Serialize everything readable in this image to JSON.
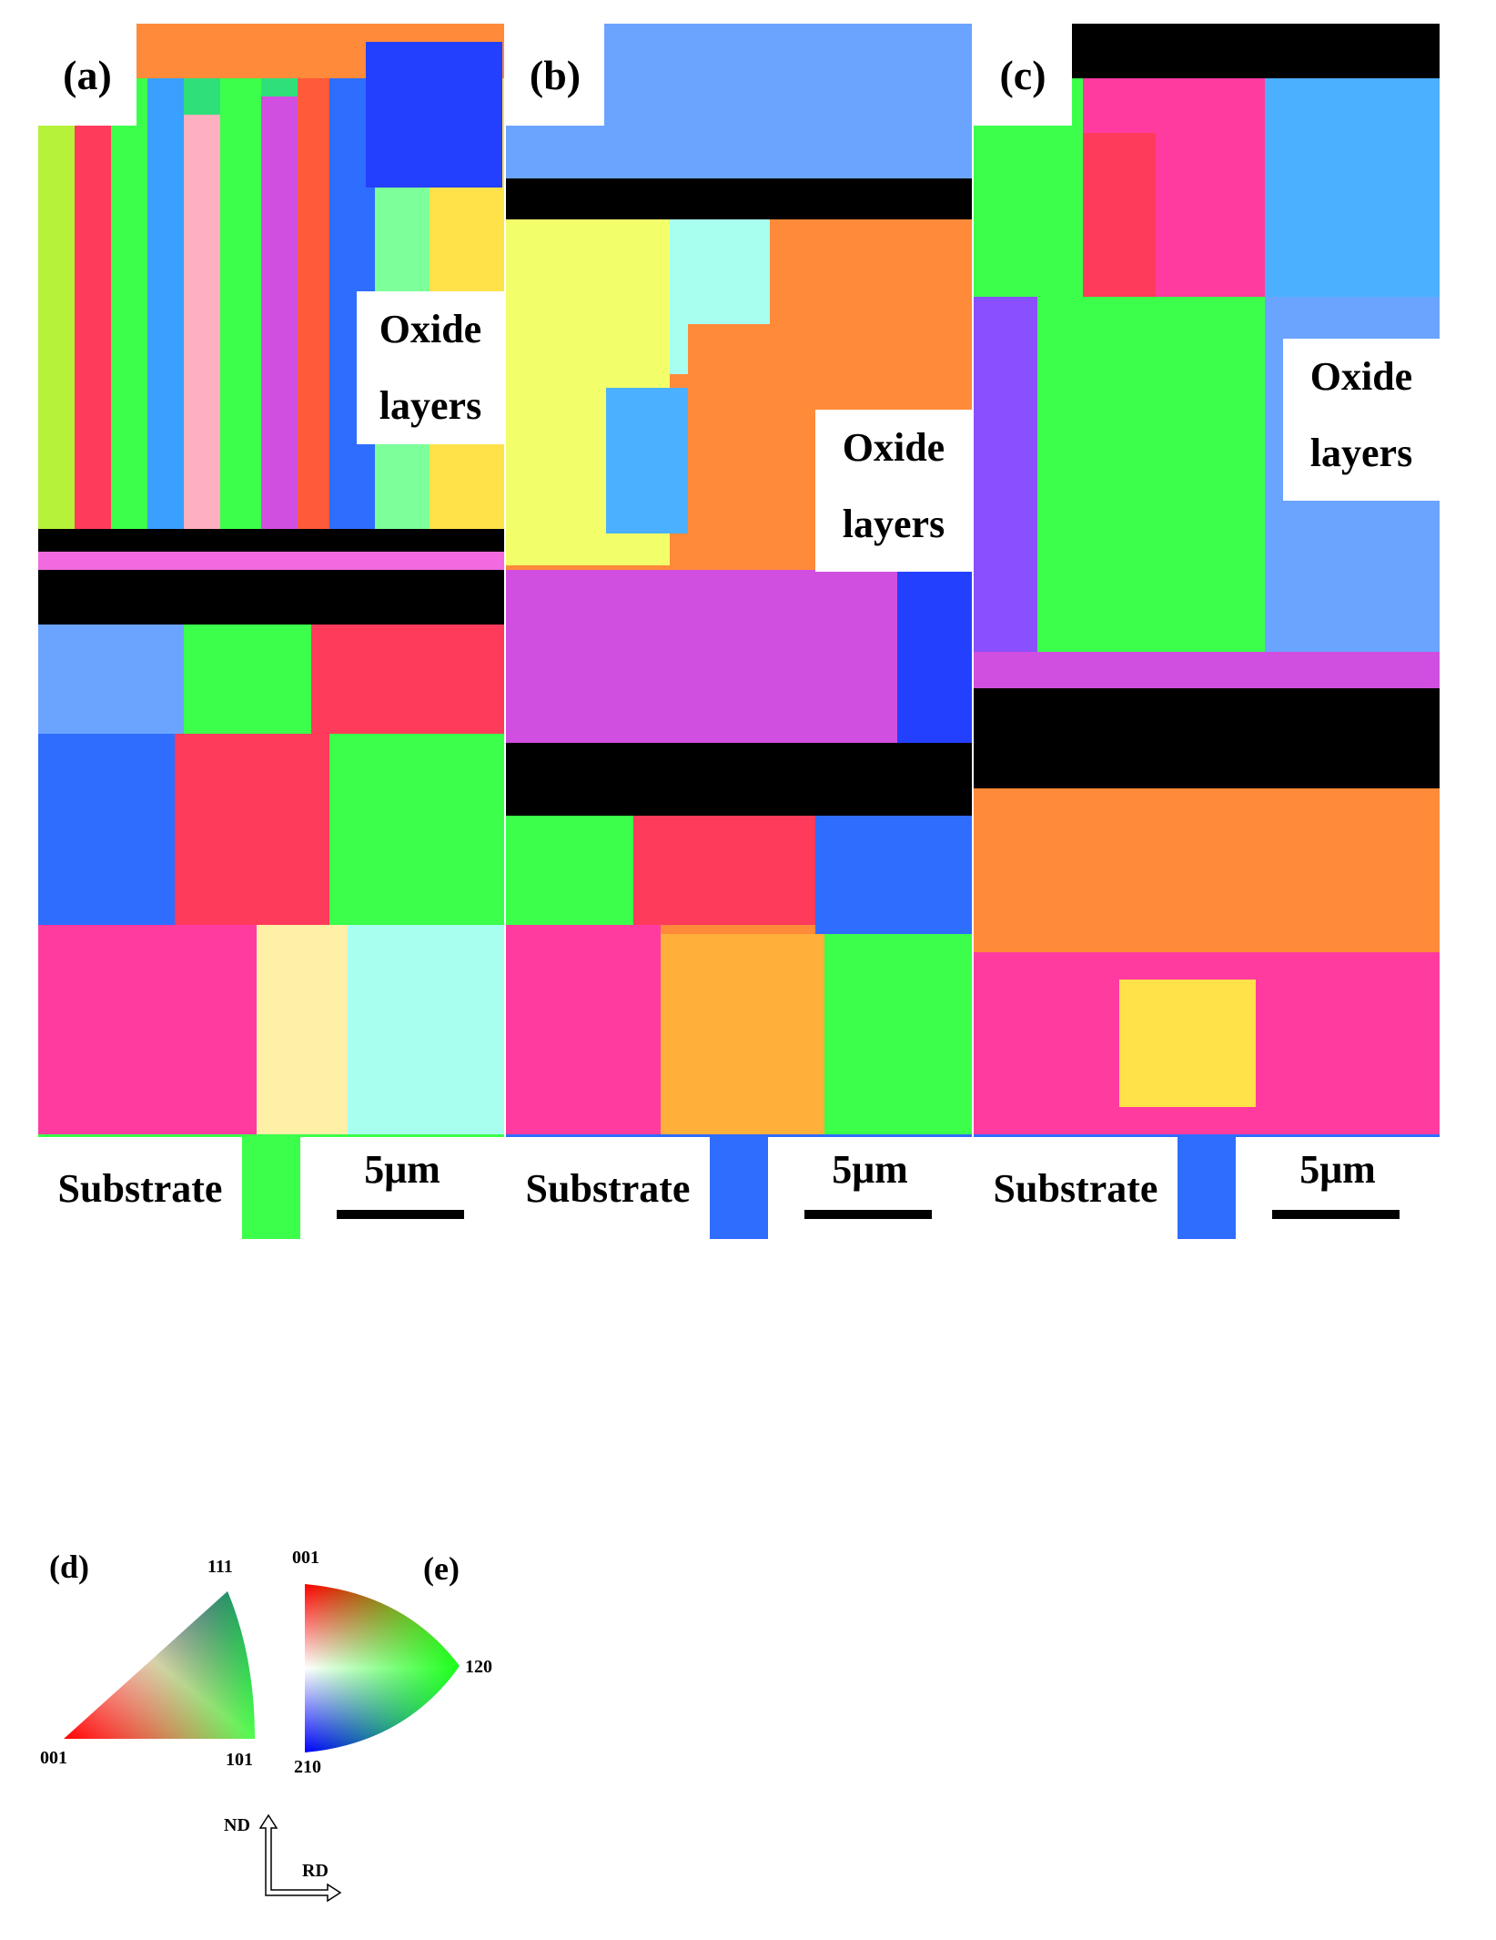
{
  "panels": [
    {
      "label": "(a)",
      "oxide": "Oxide\nlayers",
      "substrate": "Substrate",
      "scale": "5μm"
    },
    {
      "label": "(b)",
      "oxide": "Oxide\nlayers",
      "substrate": "Substrate",
      "scale": "5μm"
    },
    {
      "label": "(c)",
      "oxide": "Oxide\nlayers",
      "substrate": "Substrate",
      "scale": "5μm"
    }
  ],
  "legend": {
    "d_label": "(d)",
    "e_label": "(e)",
    "d_111": "111",
    "d_001": "001",
    "d_101": "101",
    "e_001": "001",
    "e_120": "120",
    "e_210": "210",
    "nd": "ND",
    "rd": "RD"
  }
}
